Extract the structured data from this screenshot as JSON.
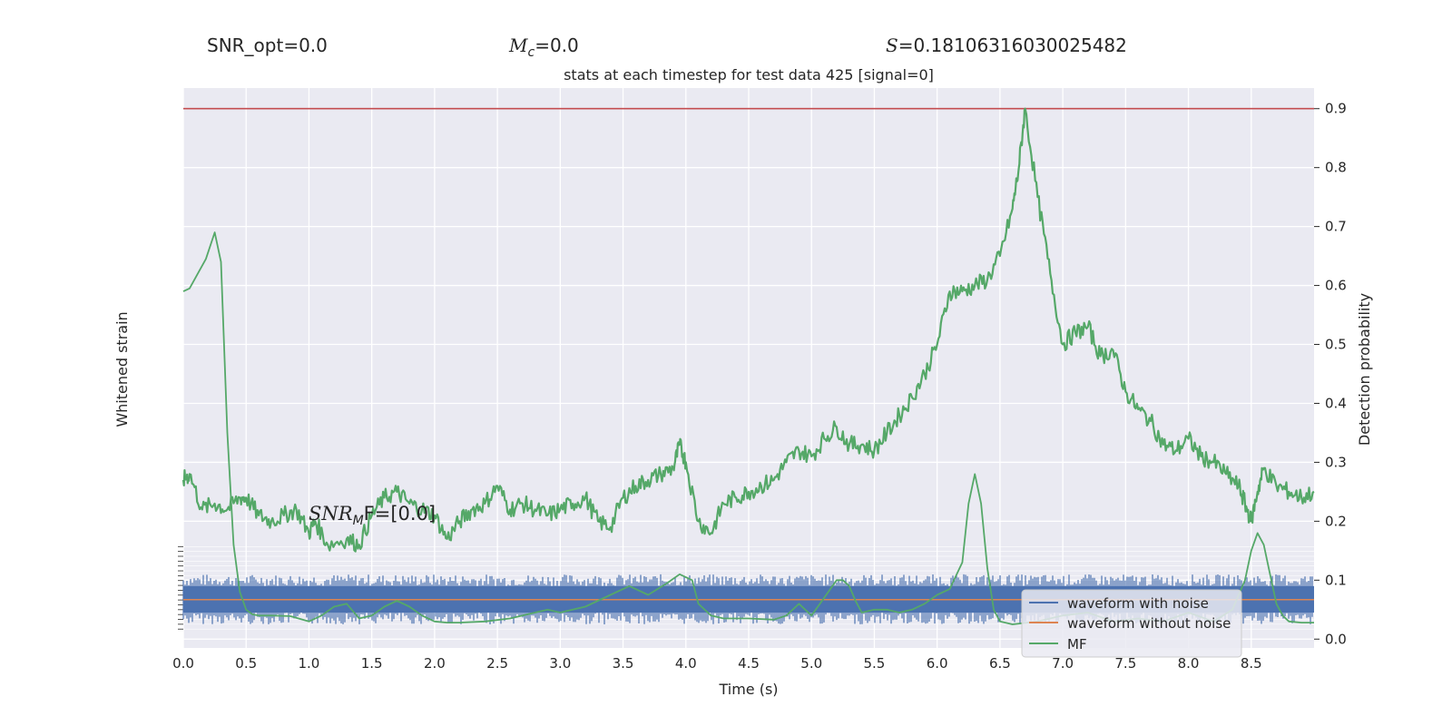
{
  "header": {
    "snr_opt": "SNR_opt=0.0",
    "mc_sym": "M",
    "mc_sub": "c",
    "mc_val": "=0.0",
    "s_sym": "S",
    "s_val": "=0.18106316030025482"
  },
  "chart_data": {
    "type": "line",
    "title": "stats at each timestep for test data 425 [signal=0]",
    "xlabel": "Time (s)",
    "ylabel_left": "Whitened strain",
    "ylabel_right": "Detection probability",
    "x_ticks": [
      "0.0",
      "0.5",
      "1.0",
      "1.5",
      "2.0",
      "2.5",
      "3.0",
      "3.5",
      "4.0",
      "4.5",
      "5.0",
      "5.5",
      "6.0",
      "6.5",
      "7.0",
      "7.5",
      "8.0",
      "8.5"
    ],
    "y_ticks_right": [
      "0.0",
      "0.1",
      "0.2",
      "0.3",
      "0.4",
      "0.5",
      "0.6",
      "0.7",
      "0.8",
      "0.9"
    ],
    "xlim": [
      0,
      9.0
    ],
    "ylim_right": [
      -0.015,
      0.935
    ],
    "threshold": 0.9,
    "threshold_color": "#c44e52",
    "annotation": {
      "prefix": "SNR",
      "sub": "M",
      "suffix": "F=[0.0]",
      "x": 1.0,
      "y": 0.2
    },
    "legend": {
      "placement": "lower-right",
      "entries": [
        {
          "label": "waveform with noise",
          "color": "#4c72b0"
        },
        {
          "label": "waveform without noise",
          "color": "#dd8452"
        },
        {
          "label": "MF",
          "color": "#55a868"
        }
      ]
    },
    "series": [
      {
        "name": "MF",
        "color": "#55a868",
        "x": [
          0.0,
          0.05,
          0.18,
          0.25,
          0.3,
          0.35,
          0.4,
          0.45,
          0.5,
          0.55,
          0.6,
          0.7,
          0.85,
          1.0,
          1.1,
          1.2,
          1.3,
          1.4,
          1.5,
          1.6,
          1.7,
          1.8,
          1.9,
          2.0,
          2.1,
          2.2,
          2.4,
          2.6,
          2.8,
          2.9,
          3.0,
          3.2,
          3.4,
          3.55,
          3.7,
          3.85,
          3.95,
          4.05,
          4.1,
          4.2,
          4.3,
          4.5,
          4.7,
          4.8,
          4.9,
          5.0,
          5.1,
          5.2,
          5.25,
          5.3,
          5.35,
          5.4,
          5.5,
          5.6,
          5.7,
          5.8,
          5.9,
          6.0,
          6.1,
          6.2,
          6.25,
          6.3,
          6.35,
          6.4,
          6.45,
          6.5,
          6.6,
          6.8,
          7.0,
          7.2,
          7.4,
          7.6,
          7.8,
          8.0,
          8.2,
          8.35,
          8.45,
          8.5,
          8.55,
          8.6,
          8.65,
          8.7,
          8.75,
          8.8,
          8.9,
          9.0
        ],
        "y": [
          0.59,
          0.595,
          0.645,
          0.69,
          0.64,
          0.35,
          0.16,
          0.08,
          0.05,
          0.042,
          0.04,
          0.04,
          0.039,
          0.03,
          0.04,
          0.055,
          0.06,
          0.035,
          0.04,
          0.055,
          0.065,
          0.055,
          0.04,
          0.03,
          0.028,
          0.028,
          0.03,
          0.035,
          0.045,
          0.05,
          0.045,
          0.055,
          0.075,
          0.09,
          0.075,
          0.095,
          0.11,
          0.1,
          0.06,
          0.04,
          0.035,
          0.035,
          0.033,
          0.04,
          0.06,
          0.04,
          0.07,
          0.1,
          0.1,
          0.09,
          0.065,
          0.045,
          0.05,
          0.05,
          0.045,
          0.05,
          0.06,
          0.075,
          0.085,
          0.13,
          0.23,
          0.28,
          0.23,
          0.12,
          0.05,
          0.03,
          0.025,
          0.03,
          0.04,
          0.045,
          0.03,
          0.035,
          0.03,
          0.045,
          0.03,
          0.05,
          0.1,
          0.15,
          0.18,
          0.16,
          0.11,
          0.06,
          0.04,
          0.03,
          0.028,
          0.028
        ]
      },
      {
        "name": "Detection probability",
        "color": "#55a868",
        "x": [
          0.0,
          0.05,
          0.15,
          0.25,
          0.35,
          0.45,
          0.5,
          0.6,
          0.7,
          0.8,
          0.9,
          1.0,
          1.05,
          1.15,
          1.3,
          1.4,
          1.5,
          1.6,
          1.7,
          1.8,
          1.9,
          2.0,
          2.1,
          2.2,
          2.3,
          2.4,
          2.5,
          2.6,
          2.7,
          2.8,
          2.9,
          3.0,
          3.1,
          3.2,
          3.3,
          3.4,
          3.5,
          3.6,
          3.7,
          3.8,
          3.9,
          3.95,
          4.0,
          4.1,
          4.2,
          4.3,
          4.4,
          4.5,
          4.6,
          4.7,
          4.8,
          4.9,
          5.0,
          5.1,
          5.2,
          5.3,
          5.4,
          5.5,
          5.6,
          5.7,
          5.8,
          5.9,
          6.0,
          6.1,
          6.2,
          6.3,
          6.4,
          6.5,
          6.6,
          6.65,
          6.7,
          6.8,
          6.9,
          7.0,
          7.1,
          7.2,
          7.3,
          7.4,
          7.5,
          7.6,
          7.7,
          7.8,
          7.9,
          8.0,
          8.1,
          8.2,
          8.3,
          8.4,
          8.45,
          8.5,
          8.55,
          8.6,
          8.7,
          8.8,
          8.9,
          9.0
        ],
        "y": [
          0.27,
          0.28,
          0.22,
          0.23,
          0.22,
          0.24,
          0.24,
          0.21,
          0.2,
          0.21,
          0.22,
          0.18,
          0.2,
          0.16,
          0.17,
          0.16,
          0.21,
          0.24,
          0.25,
          0.23,
          0.22,
          0.21,
          0.17,
          0.2,
          0.22,
          0.23,
          0.26,
          0.22,
          0.23,
          0.22,
          0.21,
          0.22,
          0.23,
          0.24,
          0.2,
          0.19,
          0.24,
          0.26,
          0.27,
          0.28,
          0.29,
          0.33,
          0.3,
          0.2,
          0.18,
          0.23,
          0.24,
          0.25,
          0.26,
          0.27,
          0.3,
          0.32,
          0.31,
          0.34,
          0.36,
          0.33,
          0.33,
          0.32,
          0.35,
          0.38,
          0.41,
          0.45,
          0.5,
          0.59,
          0.59,
          0.6,
          0.61,
          0.65,
          0.73,
          0.8,
          0.9,
          0.75,
          0.62,
          0.5,
          0.52,
          0.53,
          0.48,
          0.49,
          0.42,
          0.39,
          0.37,
          0.33,
          0.32,
          0.34,
          0.31,
          0.3,
          0.28,
          0.26,
          0.23,
          0.2,
          0.25,
          0.29,
          0.26,
          0.25,
          0.24,
          0.25
        ]
      },
      {
        "name": "waveform with noise",
        "color": "#4c72b0",
        "band": [
          0.025,
          0.11
        ]
      },
      {
        "name": "waveform without noise",
        "color": "#dd8452",
        "level": 0.067
      }
    ]
  }
}
